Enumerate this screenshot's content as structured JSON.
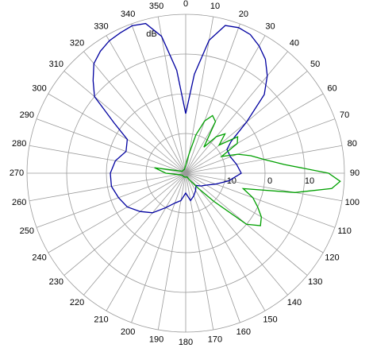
{
  "chart_data": {
    "type": "polar",
    "r_label": "dB",
    "rlim": [
      -20,
      20
    ],
    "rticks": [
      -10,
      0,
      10
    ],
    "thetaticks": [
      0,
      10,
      20,
      30,
      40,
      50,
      60,
      70,
      80,
      90,
      100,
      110,
      120,
      130,
      140,
      150,
      160,
      170,
      180,
      190,
      200,
      210,
      220,
      230,
      240,
      250,
      260,
      270,
      280,
      290,
      300,
      310,
      320,
      330,
      340,
      350
    ],
    "grid": true,
    "series": [
      {
        "color": "#0000a0",
        "theta": [
          0,
          5,
          10,
          15,
          20,
          25,
          30,
          35,
          40,
          45,
          50,
          55,
          60,
          70,
          80,
          90,
          100,
          110,
          120,
          130,
          140,
          150,
          160,
          170,
          180,
          190,
          200,
          210,
          220,
          230,
          240,
          250,
          260,
          270,
          280,
          290,
          300,
          305,
          310,
          315,
          320,
          325,
          330,
          335,
          340,
          345,
          350,
          355
        ],
        "values": [
          -5,
          5,
          14,
          18.5,
          19,
          18.5,
          17,
          15,
          12,
          8,
          0,
          -6,
          -8,
          -8,
          -7,
          -6,
          -9,
          -12,
          -14,
          -15,
          -16,
          -15,
          -14,
          -13,
          -15,
          -13,
          -12,
          -10,
          -7,
          -5,
          -3,
          -2,
          -1,
          -1,
          -2,
          -4,
          -3,
          2,
          10,
          13,
          16,
          17.5,
          18.5,
          19,
          19.5,
          19,
          15,
          6
        ]
      },
      {
        "color": "#00a000",
        "theta": [
          0,
          5,
          10,
          15,
          20,
          25,
          30,
          35,
          40,
          45,
          50,
          55,
          60,
          65,
          70,
          75,
          80,
          85,
          90,
          93,
          96,
          100,
          105,
          110,
          115,
          120,
          125,
          130,
          135,
          140,
          150,
          160,
          180,
          200,
          220,
          240,
          260,
          270,
          280,
          300,
          320,
          340
        ],
        "values": [
          -18,
          -17,
          -15,
          -10,
          -6,
          -4,
          -5,
          -12,
          -8,
          -6,
          -9,
          -4,
          -5,
          -10,
          -6,
          -3,
          0,
          5,
          16,
          19,
          17,
          8,
          -5,
          -2,
          0,
          2,
          3,
          0,
          -10,
          -15,
          -18,
          -19,
          -19,
          -19,
          -19,
          -19,
          -18,
          -15,
          -12,
          -19,
          -19,
          -19
        ]
      }
    ]
  }
}
